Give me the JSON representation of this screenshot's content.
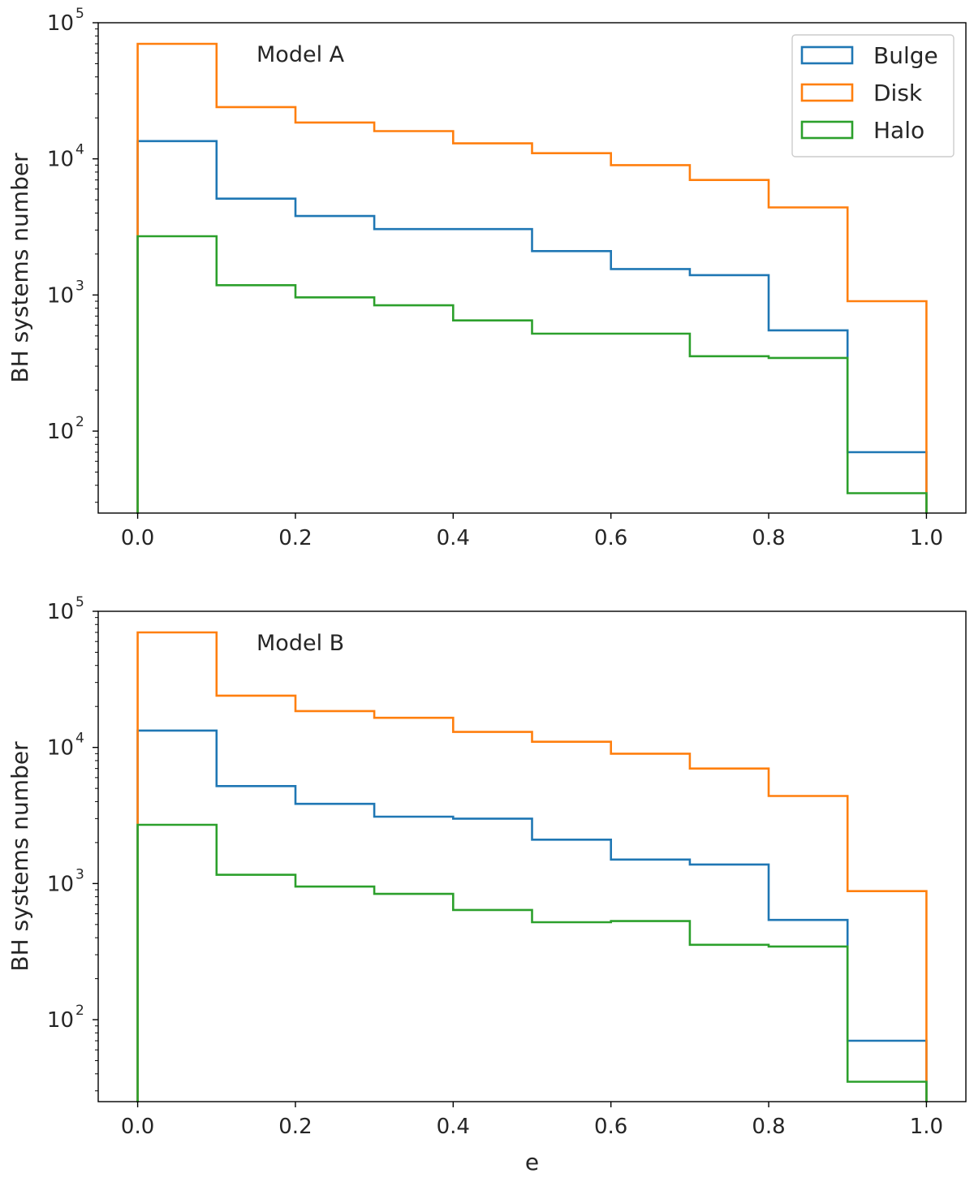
{
  "chart_data": [
    {
      "type": "histogram-step",
      "annotation": "Model A",
      "xlabel": "",
      "ylabel": "BH systems number",
      "yscale": "log",
      "xlim": [
        -0.05,
        1.05
      ],
      "ylim": [
        25,
        100000
      ],
      "xticks": [
        "0.0",
        "0.2",
        "0.4",
        "0.6",
        "0.8",
        "1.0"
      ],
      "yticks": [
        {
          "base": "10",
          "exp": "2"
        },
        {
          "base": "10",
          "exp": "3"
        },
        {
          "base": "10",
          "exp": "4"
        },
        {
          "base": "10",
          "exp": "5"
        }
      ],
      "legend_position": "upper right",
      "bin_edges": [
        0.0,
        0.1,
        0.2,
        0.3,
        0.4,
        0.5,
        0.6,
        0.7,
        0.8,
        0.9,
        1.0
      ],
      "series": [
        {
          "name": "Bulge",
          "color": "#1f77b4",
          "counts": [
            13500,
            5100,
            3800,
            3050,
            3050,
            2100,
            1550,
            1400,
            550,
            70
          ]
        },
        {
          "name": "Disk",
          "color": "#ff7f0e",
          "counts": [
            70000,
            24000,
            18500,
            16000,
            13000,
            11000,
            9000,
            7000,
            4400,
            900
          ]
        },
        {
          "name": "Halo",
          "color": "#2ca02c",
          "counts": [
            2700,
            1180,
            960,
            840,
            650,
            520,
            520,
            355,
            345,
            35
          ]
        }
      ]
    },
    {
      "type": "histogram-step",
      "annotation": "Model B",
      "xlabel": "e",
      "ylabel": "BH systems number",
      "yscale": "log",
      "xlim": [
        -0.05,
        1.05
      ],
      "ylim": [
        25,
        100000
      ],
      "xticks": [
        "0.0",
        "0.2",
        "0.4",
        "0.6",
        "0.8",
        "1.0"
      ],
      "yticks": [
        {
          "base": "10",
          "exp": "2"
        },
        {
          "base": "10",
          "exp": "3"
        },
        {
          "base": "10",
          "exp": "4"
        },
        {
          "base": "10",
          "exp": "5"
        }
      ],
      "bin_edges": [
        0.0,
        0.1,
        0.2,
        0.3,
        0.4,
        0.5,
        0.6,
        0.7,
        0.8,
        0.9,
        1.0
      ],
      "series": [
        {
          "name": "Bulge",
          "color": "#1f77b4",
          "counts": [
            13300,
            5200,
            3850,
            3100,
            3000,
            2100,
            1500,
            1380,
            540,
            70
          ]
        },
        {
          "name": "Disk",
          "color": "#ff7f0e",
          "counts": [
            70000,
            24000,
            18500,
            16500,
            13000,
            11000,
            9000,
            7000,
            4400,
            880
          ]
        },
        {
          "name": "Halo",
          "color": "#2ca02c",
          "counts": [
            2700,
            1160,
            950,
            840,
            640,
            520,
            530,
            355,
            345,
            35
          ]
        }
      ]
    }
  ]
}
